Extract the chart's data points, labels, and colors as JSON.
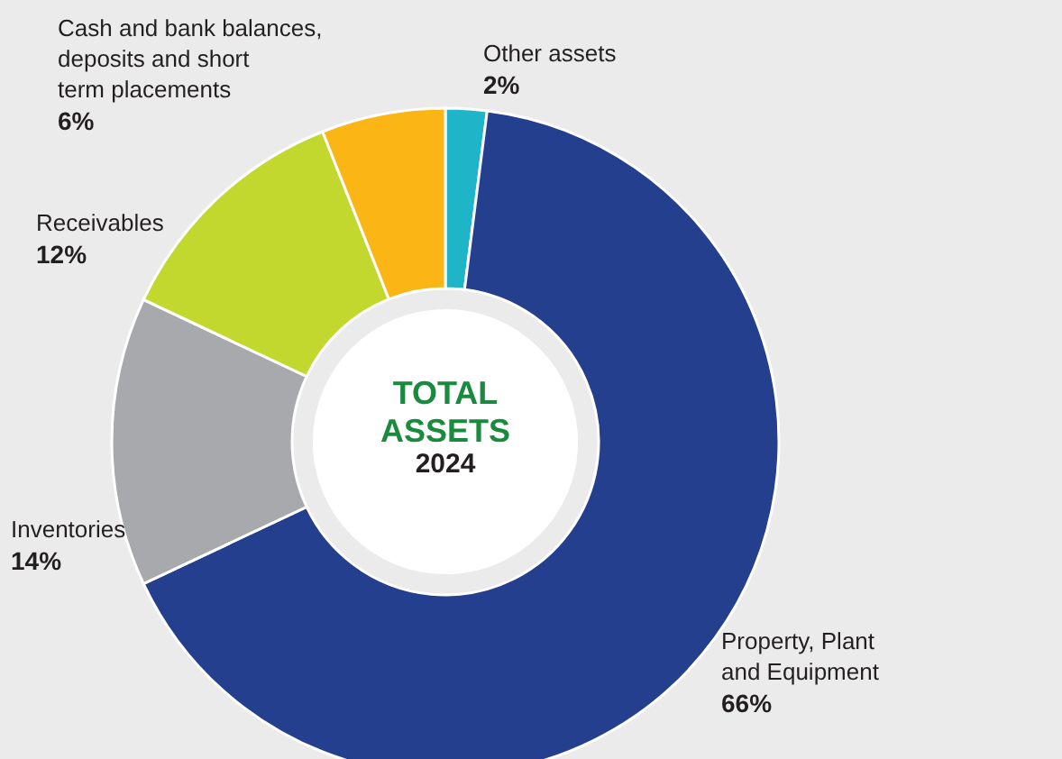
{
  "chart_data": {
    "type": "donut",
    "title": "TOTAL ASSETS",
    "subtitle": "2024",
    "categories": [
      "Other assets",
      "Property, Plant and Equipment",
      "Inventories",
      "Receivables",
      "Cash and bank balances, deposits and short term placements"
    ],
    "values": [
      2,
      66,
      14,
      12,
      6
    ],
    "colors": [
      "#1fb5c9",
      "#253f8f",
      "#a7a9ac",
      "#c3d82e",
      "#fbb615"
    ],
    "value_labels": [
      "2%",
      "66%",
      "14%",
      "12%",
      "6%"
    ]
  }
}
